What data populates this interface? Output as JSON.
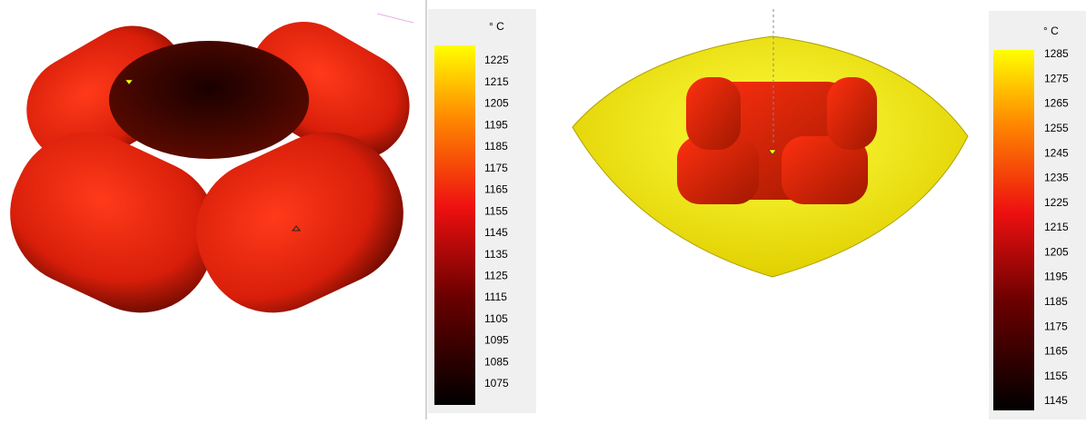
{
  "panels": [
    {
      "unit": "° C",
      "ticks": [
        1225,
        1215,
        1205,
        1195,
        1185,
        1175,
        1165,
        1155,
        1145,
        1135,
        1125,
        1115,
        1105,
        1095,
        1085,
        1075
      ]
    },
    {
      "unit": "° C",
      "ticks": [
        1285,
        1275,
        1265,
        1255,
        1245,
        1235,
        1225,
        1215,
        1205,
        1195,
        1185,
        1175,
        1165,
        1155,
        1145
      ]
    }
  ]
}
